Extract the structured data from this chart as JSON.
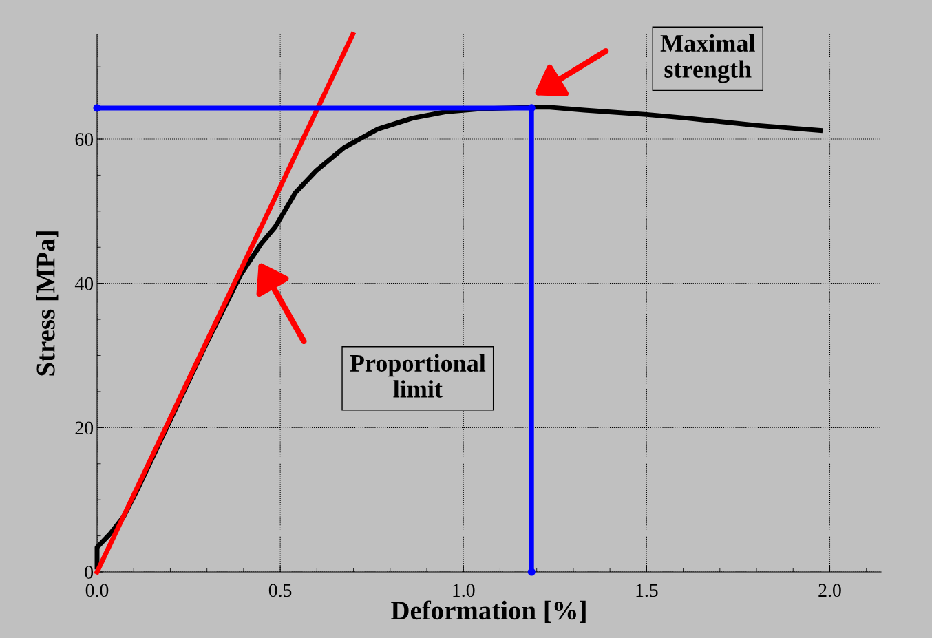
{
  "chart_data": {
    "type": "line",
    "xlabel": "Deformation [%]",
    "ylabel": "Stress [MPa]",
    "xlim": [
      0,
      2.14
    ],
    "ylim": [
      0,
      74.5
    ],
    "xticks": [
      {
        "value": 0,
        "label": "0.0"
      },
      {
        "value": 0.5,
        "label": "0.5"
      },
      {
        "value": 1,
        "label": "1.0"
      },
      {
        "value": 1.5,
        "label": "1.5"
      },
      {
        "value": 2,
        "label": "2.0"
      }
    ],
    "yticks": [
      0,
      20,
      40,
      60
    ],
    "grid": true,
    "legend": false,
    "series": [
      {
        "color": "#000000",
        "x": [
          0,
          0,
          0.036,
          0.073,
          0.11,
          0.205,
          0.298,
          0.392,
          0.448,
          0.486,
          0.542,
          0.598,
          0.674,
          0.767,
          0.861,
          0.955,
          1.049,
          1.186,
          1.236,
          1.33,
          1.5,
          1.61,
          1.8,
          1.974
        ],
        "values": [
          0.7,
          3.4,
          5.3,
          7.7,
          11.4,
          21.6,
          31.6,
          41.2,
          45.5,
          47.8,
          52.6,
          55.6,
          58.8,
          61.4,
          62.9,
          63.8,
          64.2,
          64.4,
          64.4,
          64,
          63.4,
          62.9,
          61.9,
          61.2
        ],
        "marker": "none"
      },
      {
        "color": "#ff0000",
        "x": [
          0,
          0.698
        ],
        "values": [
          0,
          74.5
        ],
        "marker": "none"
      },
      {
        "color": "#0000ff",
        "x": [
          0,
          1.186,
          1.186
        ],
        "values": [
          64.3,
          64.3,
          0
        ],
        "marker": "circle"
      }
    ],
    "annotations": [
      "Maximal\nstrength",
      "Proportional\nlimit"
    ]
  }
}
